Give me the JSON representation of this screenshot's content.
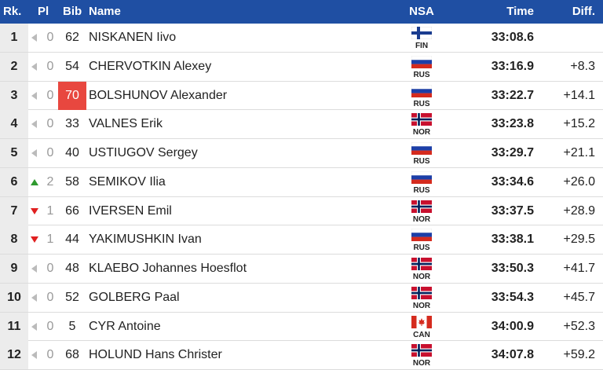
{
  "columns": [
    "Rk.",
    "Pl",
    "Bib",
    "Name",
    "NSA",
    "Time",
    "Diff."
  ],
  "rows": [
    {
      "rank": 1,
      "trend": "same",
      "pl": 0,
      "bib": 62,
      "name": "NISKANEN Iivo",
      "nsa": "FIN",
      "time": "33:08.6"
    },
    {
      "rank": 2,
      "trend": "same",
      "pl": 0,
      "bib": 54,
      "name": "CHERVOTKIN Alexey",
      "nsa": "RUS",
      "time": "33:16.9",
      "diff": "+8.3"
    },
    {
      "rank": 3,
      "trend": "same",
      "pl": 0,
      "bib": 70,
      "highlight": true,
      "name": "BOLSHUNOV Alexander",
      "nsa": "RUS",
      "time": "33:22.7",
      "diff": "+14.1"
    },
    {
      "rank": 4,
      "trend": "same",
      "pl": 0,
      "bib": 33,
      "name": "VALNES Erik",
      "nsa": "NOR",
      "time": "33:23.8",
      "diff": "+15.2"
    },
    {
      "rank": 5,
      "trend": "same",
      "pl": 0,
      "bib": 40,
      "name": "USTIUGOV Sergey",
      "nsa": "RUS",
      "time": "33:29.7",
      "diff": "+21.1"
    },
    {
      "rank": 6,
      "trend": "up",
      "pl": 2,
      "bib": 58,
      "name": "SEMIKOV Ilia",
      "nsa": "RUS",
      "time": "33:34.6",
      "diff": "+26.0"
    },
    {
      "rank": 7,
      "trend": "down",
      "pl": 1,
      "bib": 66,
      "name": "IVERSEN Emil",
      "nsa": "NOR",
      "time": "33:37.5",
      "diff": "+28.9"
    },
    {
      "rank": 8,
      "trend": "down",
      "pl": 1,
      "bib": 44,
      "name": "YAKIMUSHKIN Ivan",
      "nsa": "RUS",
      "time": "33:38.1",
      "diff": "+29.5"
    },
    {
      "rank": 9,
      "trend": "same",
      "pl": 0,
      "bib": 48,
      "name": "KLAEBO Johannes Hoesflot",
      "nsa": "NOR",
      "time": "33:50.3",
      "diff": "+41.7"
    },
    {
      "rank": 10,
      "trend": "same",
      "pl": 0,
      "bib": 52,
      "name": "GOLBERG Paal",
      "nsa": "NOR",
      "time": "33:54.3",
      "diff": "+45.7"
    },
    {
      "rank": 11,
      "trend": "same",
      "pl": 0,
      "bib": 5,
      "name": "CYR Antoine",
      "nsa": "CAN",
      "time": "34:00.9",
      "diff": "+52.3"
    },
    {
      "rank": 12,
      "trend": "same",
      "pl": 0,
      "bib": 68,
      "name": "HOLUND Hans Christer",
      "nsa": "NOR",
      "time": "34:07.8",
      "diff": "+59.2"
    }
  ]
}
